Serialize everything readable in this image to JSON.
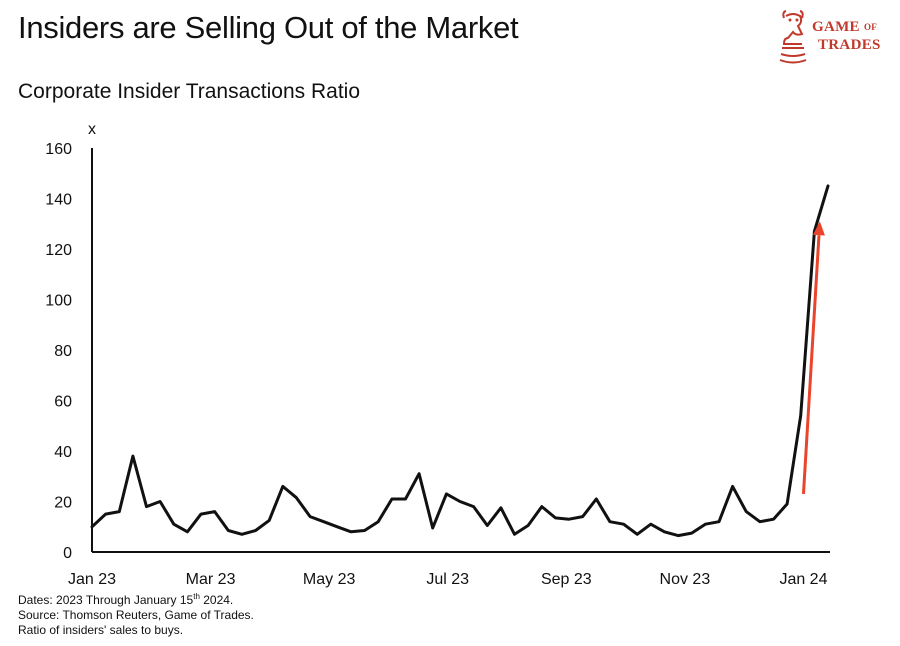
{
  "header": {
    "title": "Insiders are Selling Out of the Market",
    "subtitle": "Corporate Insider Transactions Ratio"
  },
  "logo": {
    "line1_a": "Game",
    "line1_of": "of",
    "line2": "Trades",
    "icon": "bull-chess-knight-icon",
    "color": "#c0392b"
  },
  "notes": {
    "dates_prefix": "Dates: 2023 Through January 15",
    "dates_sup": "th",
    "dates_suffix": " 2024.",
    "source": "Source: Thomson Reuters, Game of Trades.",
    "definition": "Ratio of insiders' sales to buys."
  },
  "colors": {
    "line": "#111111",
    "arrow": "#e8452c"
  },
  "chart_data": {
    "type": "line",
    "title": "Corporate Insider Transactions Ratio",
    "ylabel": "x",
    "xlabel": "",
    "ylim": [
      0,
      160
    ],
    "xlim": [
      0,
      54
    ],
    "yticks": [
      0,
      20,
      40,
      60,
      80,
      100,
      120,
      140,
      160
    ],
    "xticks": [
      {
        "label": "Jan 23",
        "x": 0
      },
      {
        "label": "Mar 23",
        "x": 8.7
      },
      {
        "label": "May 23",
        "x": 17.4
      },
      {
        "label": "Jul 23",
        "x": 26.1
      },
      {
        "label": "Sep 23",
        "x": 34.8
      },
      {
        "label": "Nov 23",
        "x": 43.5
      },
      {
        "label": "Jan 24",
        "x": 52.2
      }
    ],
    "series": [
      {
        "name": "Corporate Insider Transactions Ratio",
        "x": [
          0,
          1,
          2,
          3,
          4,
          5,
          6,
          7,
          8,
          9,
          10,
          11,
          12,
          13,
          14,
          15,
          16,
          17,
          18,
          19,
          20,
          21,
          22,
          23,
          24,
          25,
          26,
          27,
          28,
          29,
          30,
          31,
          32,
          33,
          34,
          35,
          36,
          37,
          38,
          39,
          40,
          41,
          42,
          43,
          44,
          45,
          46,
          47,
          48,
          49,
          50,
          51,
          52,
          53,
          54
        ],
        "values": [
          10,
          15,
          16,
          38,
          18,
          20,
          11,
          8,
          15,
          16,
          8.5,
          7,
          8.5,
          12.5,
          26,
          21.5,
          14,
          12,
          10,
          8,
          8.5,
          12,
          21,
          21,
          31,
          9.5,
          23,
          20,
          18,
          10.5,
          17.5,
          7,
          10.5,
          18,
          13.5,
          13,
          14,
          21,
          12,
          11,
          7,
          11,
          8,
          6.5,
          7.5,
          11,
          12,
          26,
          16,
          12,
          13,
          19,
          54,
          127,
          145
        ]
      }
    ],
    "annotations": [
      {
        "type": "arrow",
        "description": "upward trend arrow",
        "from": [
          52.2,
          23
        ],
        "to": [
          53.4,
          131
        ]
      }
    ]
  }
}
